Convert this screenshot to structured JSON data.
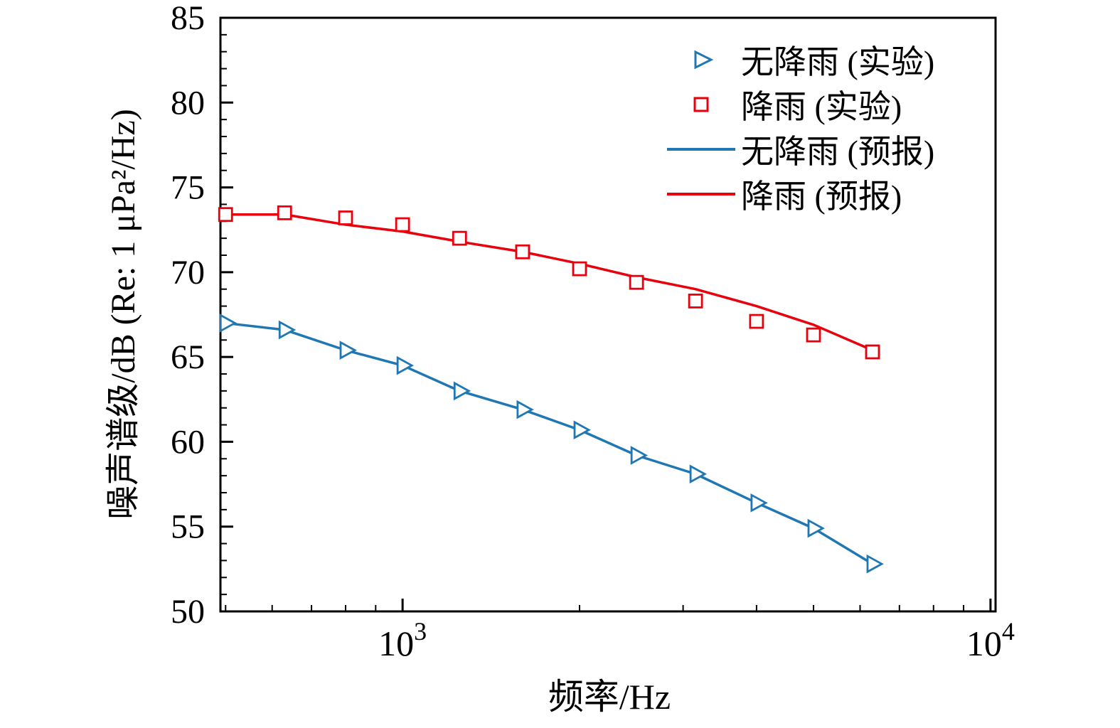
{
  "chart_data": {
    "type": "line",
    "title": "",
    "xlabel": "频率/Hz",
    "ylabel": "噪声谱级/dB (Re: 1 μPa²/Hz)",
    "x_scale": "log",
    "xlim": [
      490,
      10200
    ],
    "ylim": [
      50,
      85
    ],
    "y_ticks": [
      50,
      55,
      60,
      65,
      70,
      75,
      80,
      85
    ],
    "y_minor_step": 1,
    "x_major_ticks": [
      {
        "value": 1000,
        "base": "10",
        "exp": "3"
      },
      {
        "value": 10000,
        "base": "10",
        "exp": "4"
      }
    ],
    "x_minor_ticks": [
      500,
      600,
      700,
      800,
      900,
      2000,
      3000,
      4000,
      5000,
      6000,
      7000,
      8000,
      9000
    ],
    "grid": false,
    "legend_position": "upper right",
    "frequencies": [
      500,
      630,
      800,
      1000,
      1250,
      1600,
      2000,
      2500,
      3150,
      4000,
      5000,
      6300
    ],
    "series": [
      {
        "id": "no-rain-experiment",
        "name": "无降雨 (实验)",
        "style": "scatter",
        "marker": "triangle-right",
        "color": "#1f77b4",
        "values": [
          67.0,
          66.6,
          65.4,
          64.5,
          63.0,
          61.9,
          60.7,
          59.2,
          58.1,
          56.4,
          54.9,
          52.8
        ]
      },
      {
        "id": "rain-experiment",
        "name": "降雨 (实验)",
        "style": "scatter",
        "marker": "square",
        "color": "#e8000d",
        "values": [
          73.4,
          73.5,
          73.2,
          72.8,
          72.0,
          71.2,
          70.2,
          69.4,
          68.3,
          67.1,
          66.3,
          65.3
        ]
      },
      {
        "id": "no-rain-prediction",
        "name": "无降雨 (预报)",
        "style": "line",
        "color": "#1f77b4",
        "values": [
          67.0,
          66.6,
          65.4,
          64.5,
          63.0,
          61.9,
          60.7,
          59.2,
          58.1,
          56.4,
          54.9,
          52.8
        ]
      },
      {
        "id": "rain-prediction",
        "name": "降雨 (预报)",
        "style": "line",
        "color": "#e8000d",
        "values": [
          73.4,
          73.4,
          72.8,
          72.4,
          71.8,
          71.2,
          70.5,
          69.7,
          69.0,
          68.0,
          66.9,
          65.4
        ]
      }
    ]
  }
}
